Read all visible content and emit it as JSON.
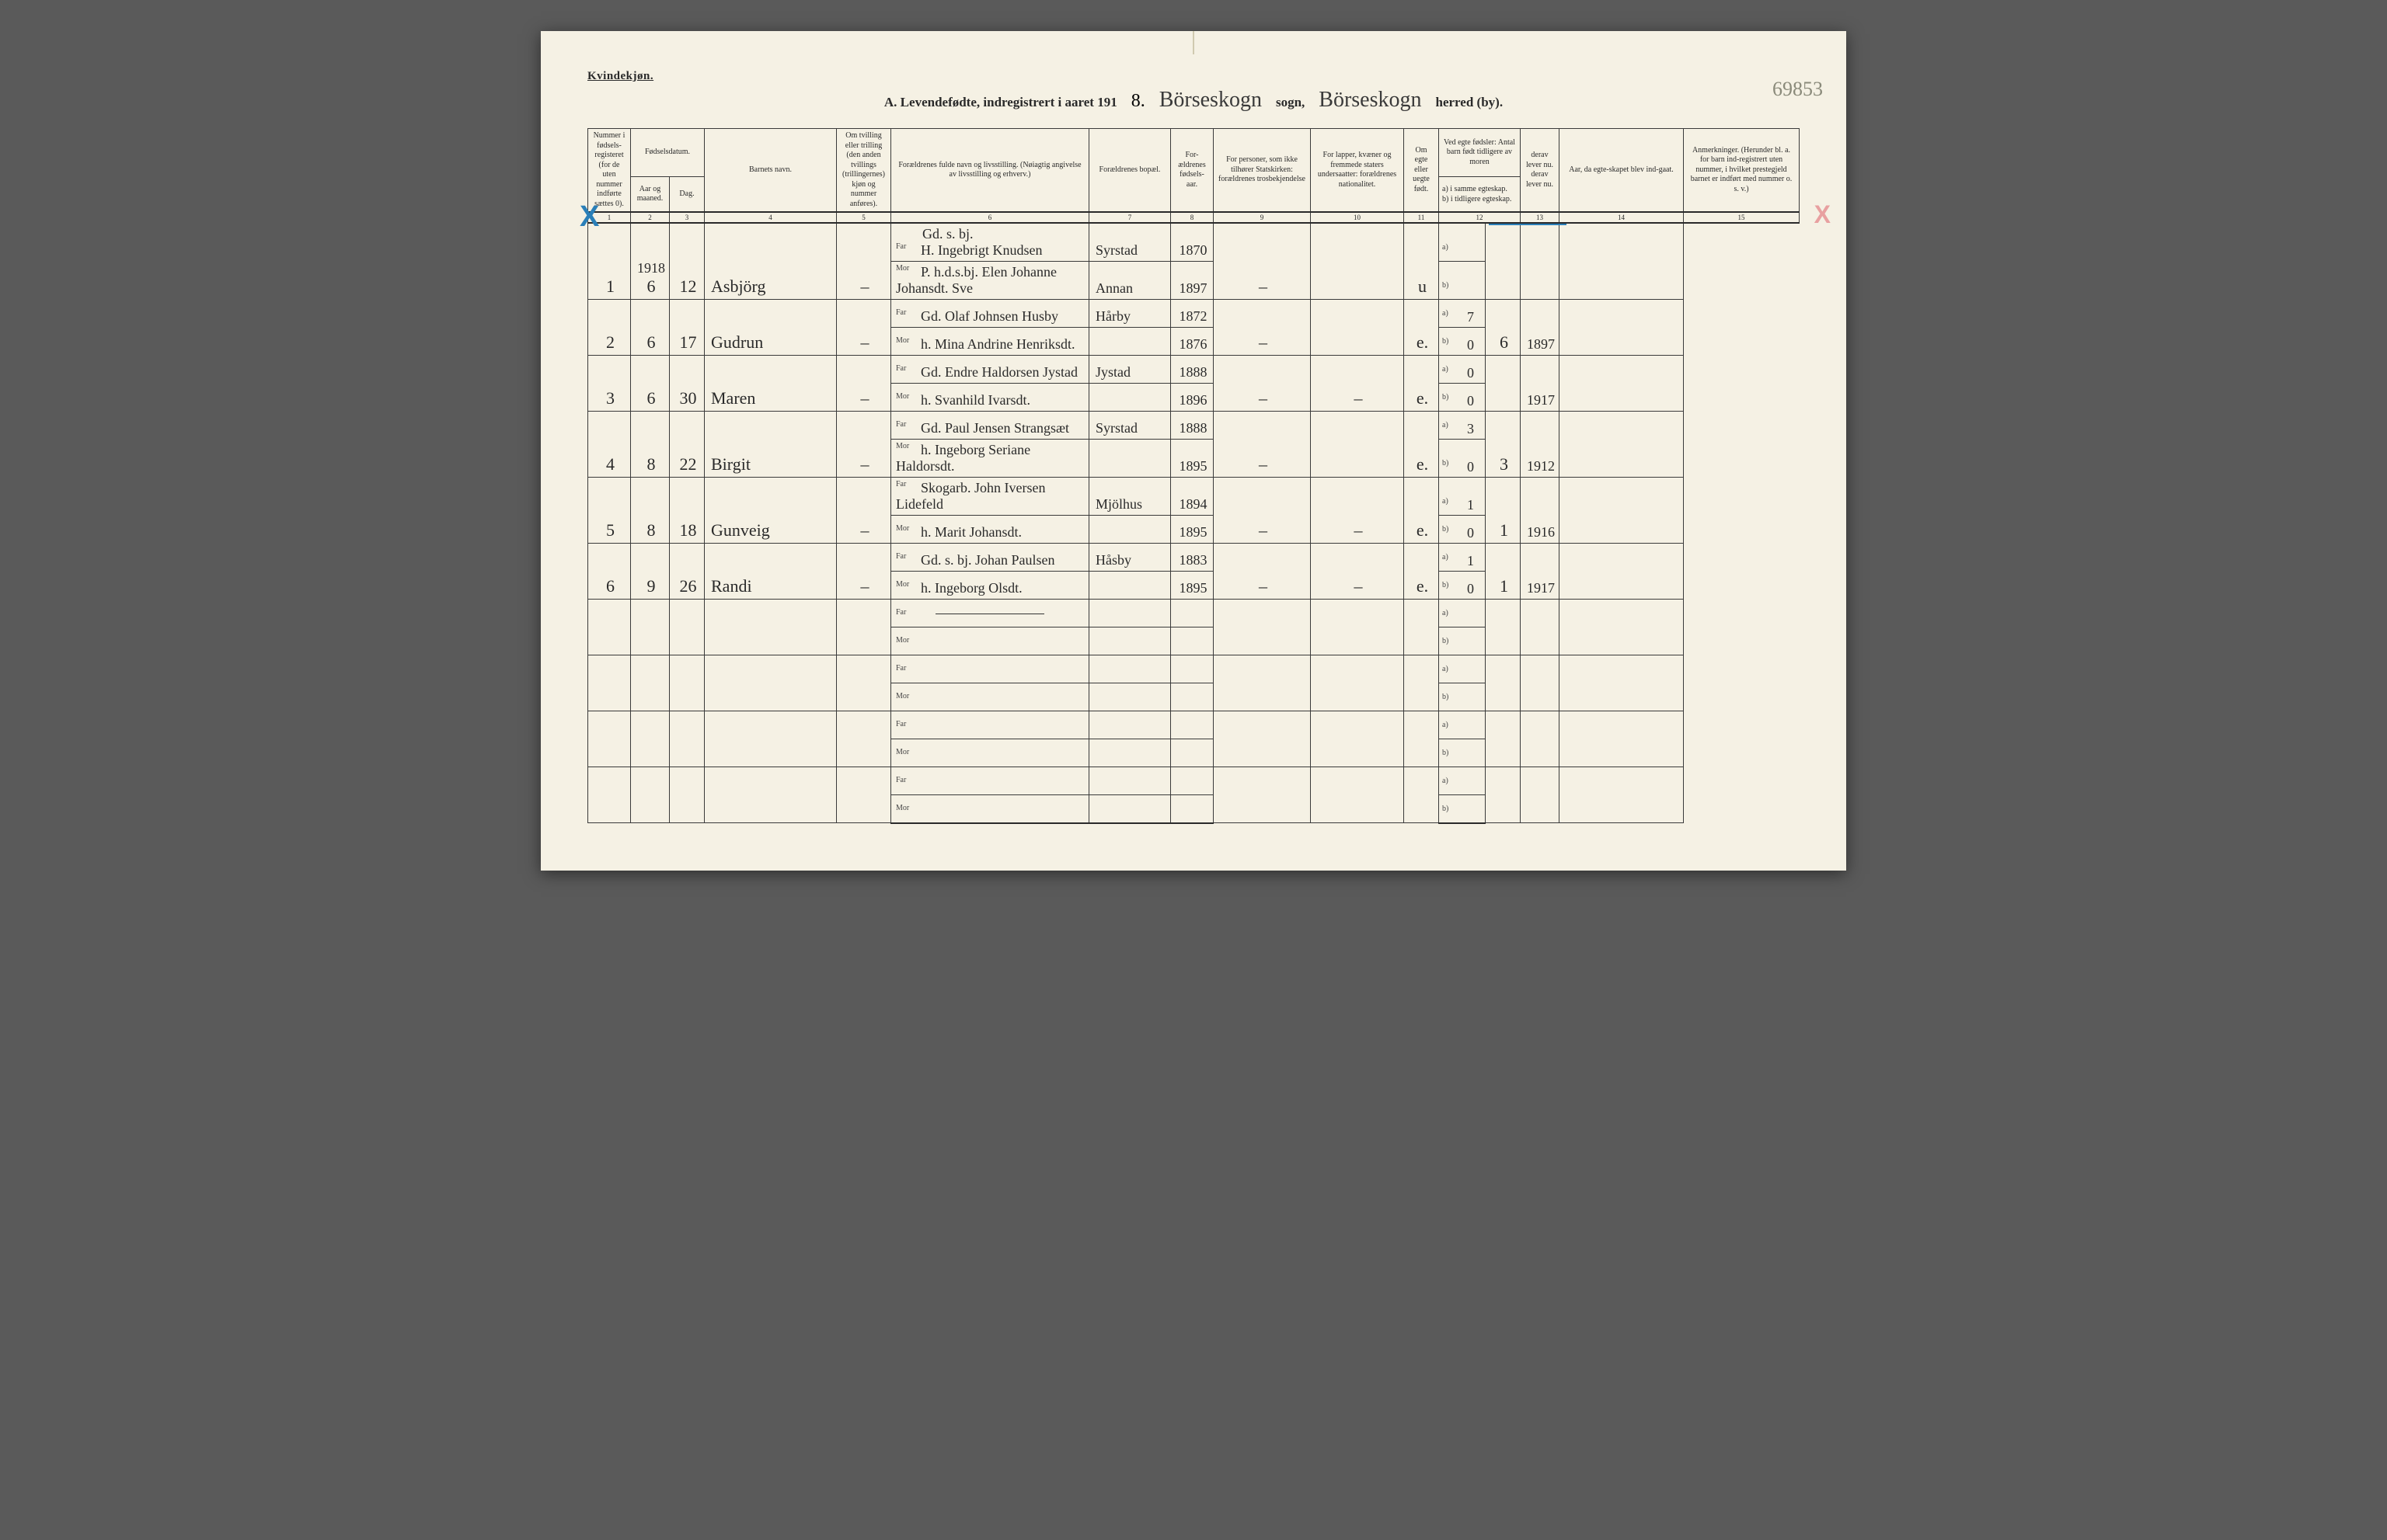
{
  "header": {
    "kvindekjon": "Kvindekjøn.",
    "title_prefix": "A.  Levendefødte, indregistrert i aaret 191",
    "year_digit": "8.",
    "sogn_cursive": "Börseskogn",
    "sogn_label": "sogn,",
    "herred_cursive": "Börseskogn",
    "herred_label": "herred (by).",
    "page_number": "69853"
  },
  "columns": {
    "c1": "Nummer i fødsels-registeret (for de uten nummer indførte sættes 0).",
    "c2_group": "Fødselsdatum.",
    "c2": "Aar og maaned.",
    "c3": "Dag.",
    "c4": "Barnets navn.",
    "c5": "Om tvilling eller trilling (den anden tvillings (trillingernes) kjøn og nummer anføres).",
    "c6": "Forældrenes fulde navn og livsstilling. (Nøiagtig angivelse av livsstilling og erhverv.)",
    "c7": "Forældrenes bopæl.",
    "c8": "For-ældrenes fødsels-aar.",
    "c9": "For personer, som ikke tilhører Statskirken: forældrenes trosbekjendelse",
    "c10": "For lapper, kvæner og fremmede staters undersaatter: forældrenes nationalitet.",
    "c11": "Om egte eller uegte født.",
    "c12_group": "Ved egte fødsler: Antal barn født tidligere av moren",
    "c12a": "a) i samme egteskap.",
    "c12b": "b) i tidligere egteskap.",
    "c13": "derav lever nu. derav lever nu.",
    "c14": "Aar, da egte-skapet blev ind-gaat.",
    "c15": "Anmerkninger. (Herunder bl. a. for barn ind-registrert uten nummer, i hvilket prestegjeld barnet er indført med nummer o. s. v.)"
  },
  "colnums": [
    "1",
    "2",
    "3",
    "4",
    "5",
    "6",
    "7",
    "8",
    "9",
    "10",
    "11",
    "12",
    "13",
    "14",
    "15"
  ],
  "rows": [
    {
      "num": "1",
      "aar": "6",
      "aar_top": "1918",
      "dag": "12",
      "navn": "Asbjörg",
      "tvil": "–",
      "far_pre": "Gd. s. bj.",
      "far": "H. Ingebrigt Knudsen",
      "mor": "P. h.d.s.bj. Elen Johanne Johansdt. Sve",
      "bopael_far": "Syrstad",
      "bopael_mor": "Annan",
      "faar_far": "1870",
      "faar_mor": "1897",
      "c9": "–",
      "c10": "",
      "egte": "u",
      "a": "",
      "b": "",
      "c13": "",
      "c14": ""
    },
    {
      "num": "2",
      "aar": "6",
      "dag": "17",
      "navn": "Gudrun",
      "tvil": "–",
      "far": "Gd. Olaf Johnsen Husby",
      "mor": "h. Mina Andrine Henriksdt.",
      "bopael_far": "Hårby",
      "bopael_mor": "",
      "faar_far": "1872",
      "faar_mor": "1876",
      "c9": "–",
      "c10": "",
      "egte": "e.",
      "a": "7",
      "b": "0",
      "c13": "6",
      "c14": "1897"
    },
    {
      "num": "3",
      "aar": "6",
      "dag": "30",
      "navn": "Maren",
      "tvil": "–",
      "far": "Gd. Endre Haldorsen Jystad",
      "mor": "h. Svanhild Ivarsdt.",
      "bopael_far": "Jystad",
      "bopael_mor": "",
      "faar_far": "1888",
      "faar_mor": "1896",
      "c9": "–",
      "c10": "–",
      "egte": "e.",
      "a": "0",
      "b": "0",
      "c13": "",
      "c14": "1917"
    },
    {
      "num": "4",
      "aar": "8",
      "dag": "22",
      "navn": "Birgit",
      "tvil": "–",
      "far": "Gd. Paul Jensen Strangsæt",
      "mor": "h. Ingeborg Seriane Haldorsdt.",
      "bopael_far": "Syrstad",
      "bopael_mor": "",
      "faar_far": "1888",
      "faar_mor": "1895",
      "c9": "–",
      "c10": "",
      "egte": "e.",
      "a": "3",
      "b": "0",
      "c13": "3",
      "c14": "1912"
    },
    {
      "num": "5",
      "aar": "8",
      "dag": "18",
      "navn": "Gunveig",
      "tvil": "–",
      "far": "Skogarb. John Iversen Lidefeld",
      "mor": "h. Marit Johansdt.",
      "bopael_far": "Mjölhus",
      "bopael_mor": "",
      "faar_far": "1894",
      "faar_mor": "1895",
      "c9": "–",
      "c10": "–",
      "egte": "e.",
      "a": "1",
      "b": "0",
      "c13": "1",
      "c14": "1916"
    },
    {
      "num": "6",
      "aar": "9",
      "dag": "26",
      "navn": "Randi",
      "tvil": "–",
      "far": "Gd. s. bj. Johan Paulsen",
      "mor": "h. Ingeborg Olsdt.",
      "bopael_far": "Håsby",
      "bopael_mor": "",
      "faar_far": "1883",
      "faar_mor": "1895",
      "c9": "–",
      "c10": "–",
      "egte": "e.",
      "a": "1",
      "b": "0",
      "c13": "1",
      "c14": "1917"
    },
    {
      "empty": true,
      "strike": true
    },
    {
      "empty": true
    },
    {
      "empty": true
    },
    {
      "empty": true
    }
  ]
}
